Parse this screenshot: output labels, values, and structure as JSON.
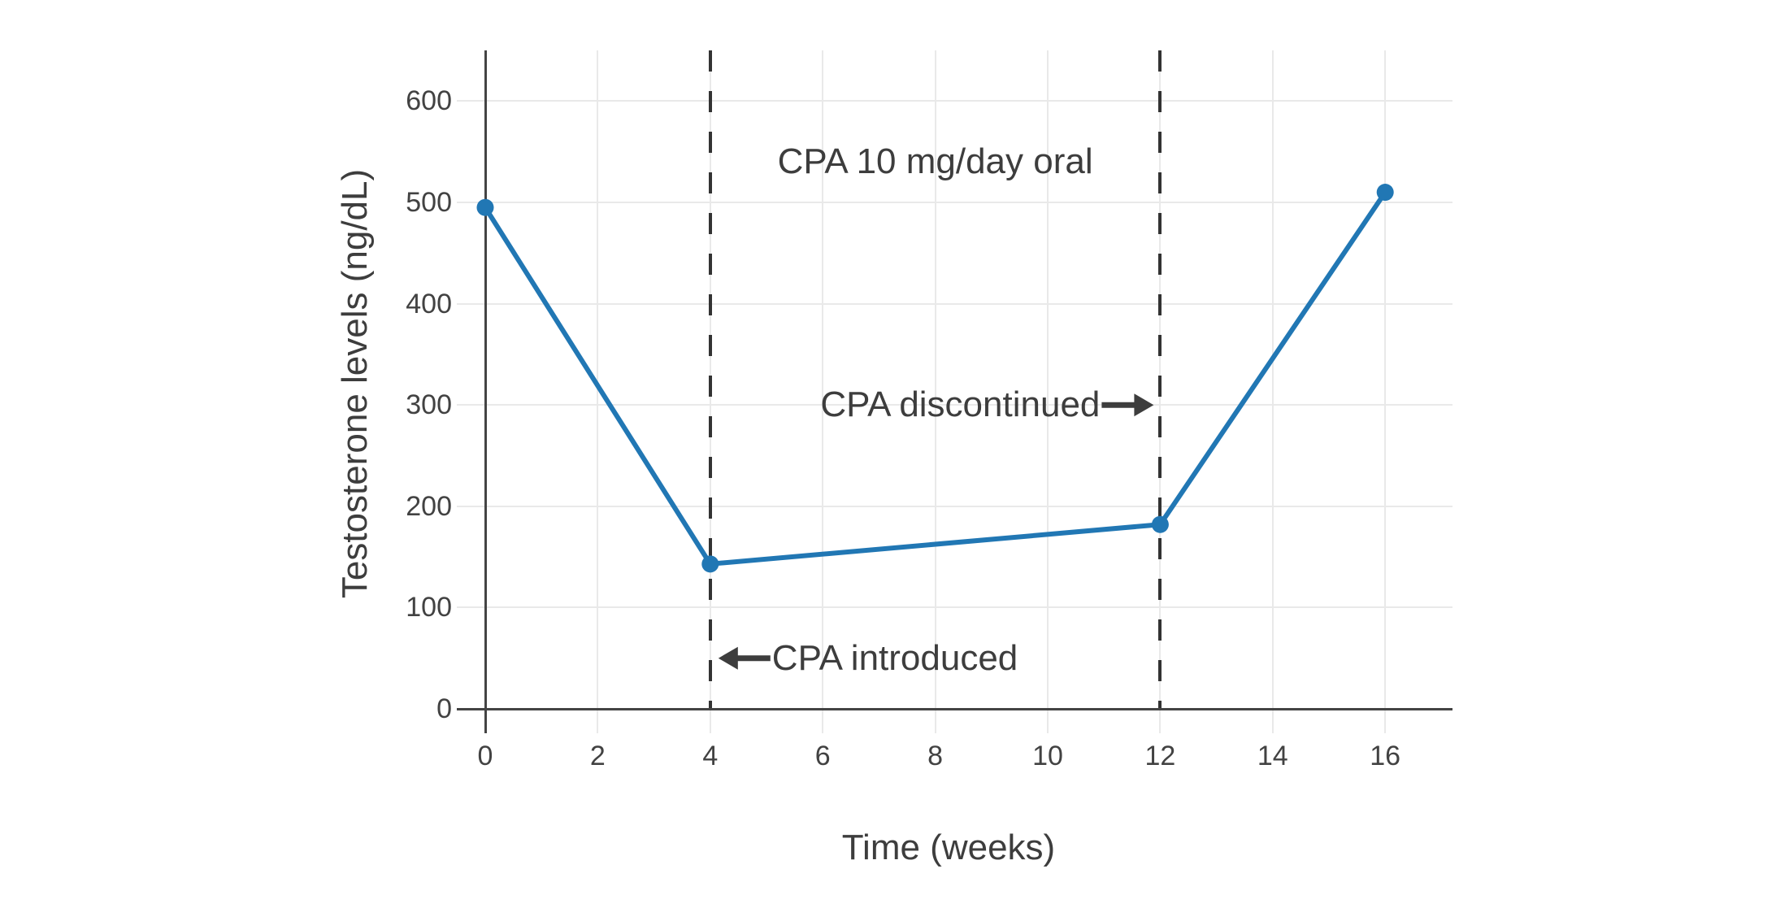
{
  "figure": {
    "background_color": "#ffffff",
    "line_color": "#2177b4",
    "marker_color": "#2177b4",
    "axis_color": "#444444",
    "grid_color": "#e9e9e9",
    "dash_line_color": "#333333",
    "tick_label_color": "#424242",
    "text_color": "#3d3d3d"
  },
  "chart_data": {
    "type": "line",
    "title": "",
    "xlabel": "Time (weeks)",
    "ylabel": "Testosterone levels (ng/dL)",
    "x": [
      0,
      4,
      12,
      16
    ],
    "series": [
      {
        "name": "Testosterone levels",
        "values": [
          495,
          143,
          182,
          510
        ]
      }
    ],
    "xticks": [
      0,
      2,
      4,
      6,
      8,
      10,
      12,
      14,
      16
    ],
    "yticks": [
      0,
      100,
      200,
      300,
      400,
      500,
      600
    ],
    "xlim": [
      0,
      17.2
    ],
    "ylim": [
      0,
      650
    ],
    "grid": true,
    "legend": false,
    "markers": true,
    "vlines": [
      {
        "x": 4,
        "style": "dashed"
      },
      {
        "x": 12,
        "style": "dashed"
      }
    ],
    "annotations": [
      {
        "text": "CPA 10 mg/day oral",
        "x": 8,
        "y": 540,
        "arrow": "none"
      },
      {
        "text": "CPA discontinued",
        "x": 12,
        "y": 300,
        "arrow": "right"
      },
      {
        "text": "CPA introduced",
        "x": 4,
        "y": 50,
        "arrow": "left"
      }
    ]
  }
}
